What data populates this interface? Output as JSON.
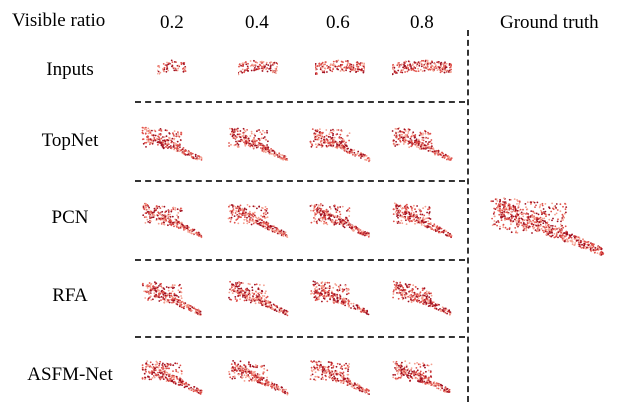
{
  "header": {
    "visible_ratio_label": "Visible ratio",
    "ratios": [
      "0.2",
      "0.4",
      "0.6",
      "0.8"
    ],
    "ground_truth_label": "Ground truth"
  },
  "rows": [
    {
      "label": "Inputs"
    },
    {
      "label": "TopNet"
    },
    {
      "label": "PCN"
    },
    {
      "label": "RFA"
    },
    {
      "label": "ASFM-Net"
    }
  ],
  "colors": {
    "light": "#f4a090",
    "mid": "#e0504a",
    "dark": "#a01020"
  }
}
